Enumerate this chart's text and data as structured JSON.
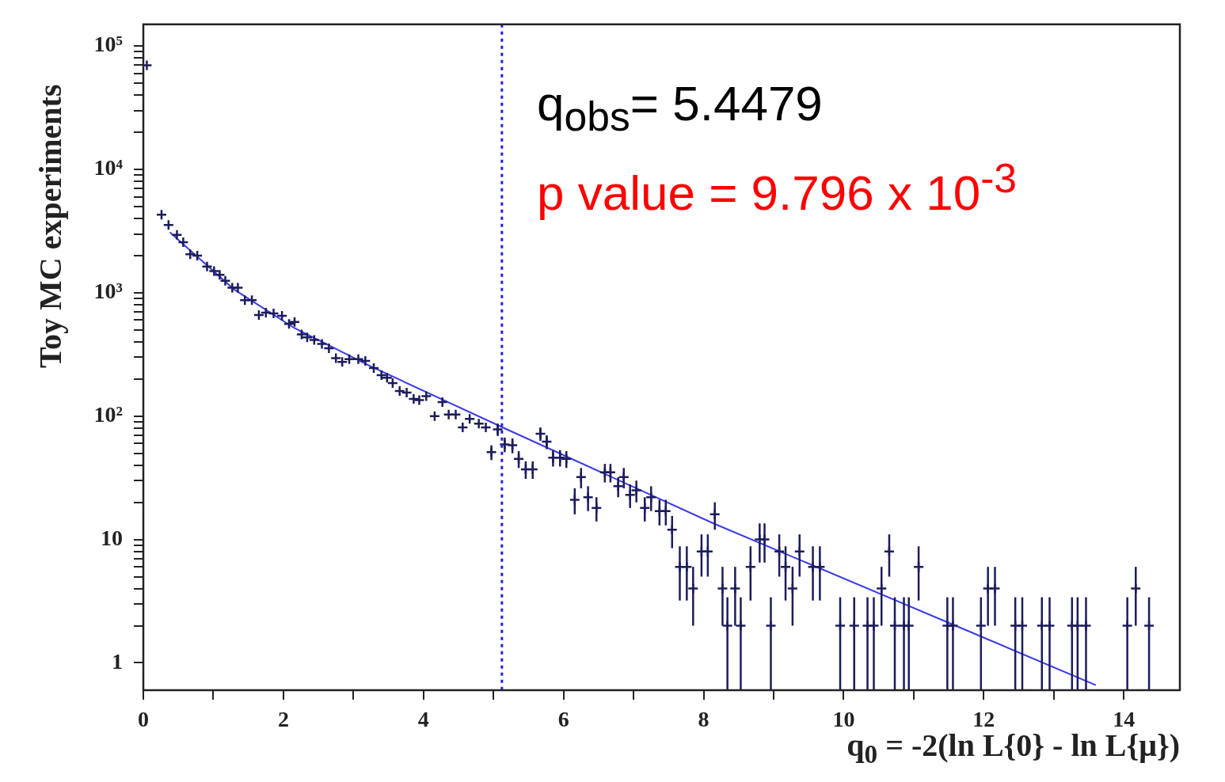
{
  "chart_data": {
    "type": "scatter",
    "xlabel": "q$_{0}$ = -2(ln L{0} - ln L{μ})",
    "ylabel": "Toy MC experiments",
    "annotations": [
      "q$_{obs}$= 5.4479",
      "p value = 9.796 x 10$^{-3}$"
    ],
    "log": "y",
    "grid": false,
    "legend": false,
    "xlim": [
      0,
      14.8
    ],
    "ylim": [
      0.6,
      150000
    ],
    "xticks": [
      0,
      {
        "value": 1,
        "label": null
      },
      2,
      {
        "value": 3,
        "label": null
      },
      4,
      {
        "value": 5,
        "label": null
      },
      6,
      {
        "value": 7,
        "label": null
      },
      8,
      {
        "value": 9,
        "label": null
      },
      10,
      {
        "value": 11,
        "label": null
      },
      12,
      {
        "value": 13,
        "label": null
      },
      14
    ],
    "yticks": [
      1,
      {
        "value": 2,
        "label": null
      },
      {
        "value": 3,
        "label": null
      },
      {
        "value": 4,
        "label": null
      },
      {
        "value": 5,
        "label": null
      },
      {
        "value": 6,
        "label": null
      },
      {
        "value": 7,
        "label": null
      },
      {
        "value": 8,
        "label": null
      },
      {
        "value": 9,
        "label": null
      },
      10,
      {
        "value": 20,
        "label": null
      },
      {
        "value": 30,
        "label": null
      },
      {
        "value": 40,
        "label": null
      },
      {
        "value": 50,
        "label": null
      },
      {
        "value": 60,
        "label": null
      },
      {
        "value": 70,
        "label": null
      },
      {
        "value": 80,
        "label": null
      },
      {
        "value": 90,
        "label": null
      },
      {
        "value": 100,
        "label": "10²"
      },
      {
        "value": 200,
        "label": null
      },
      {
        "value": 300,
        "label": null
      },
      {
        "value": 400,
        "label": null
      },
      {
        "value": 500,
        "label": null
      },
      {
        "value": 600,
        "label": null
      },
      {
        "value": 700,
        "label": null
      },
      {
        "value": 800,
        "label": null
      },
      {
        "value": 900,
        "label": null
      },
      {
        "value": 1000,
        "label": "10³"
      },
      {
        "value": 2000,
        "label": null
      },
      {
        "value": 3000,
        "label": null
      },
      {
        "value": 4000,
        "label": null
      },
      {
        "value": 5000,
        "label": null
      },
      {
        "value": 6000,
        "label": null
      },
      {
        "value": 7000,
        "label": null
      },
      {
        "value": 8000,
        "label": null
      },
      {
        "value": 9000,
        "label": null
      },
      {
        "value": 10000,
        "label": "10⁴"
      },
      {
        "value": 20000,
        "label": null
      },
      {
        "value": 30000,
        "label": null
      },
      {
        "value": 40000,
        "label": null
      },
      {
        "value": 50000,
        "label": null
      },
      {
        "value": 60000,
        "label": null
      },
      {
        "value": 70000,
        "label": null
      },
      {
        "value": 80000,
        "label": null
      },
      {
        "value": 90000,
        "label": null
      },
      {
        "value": 100000,
        "label": "10⁵"
      }
    ],
    "ref_lines": [
      {
        "axis": "x",
        "value": 5.12,
        "color": "#2222dd",
        "line_style": "dotted"
      }
    ],
    "series": [
      {
        "type": "scatter",
        "color": "#1c1c5c",
        "marker": "cross",
        "x": [
          0.05,
          0.26,
          0.36,
          0.48,
          0.57,
          0.67,
          0.77,
          0.91,
          1.01,
          1.09,
          1.17,
          1.27,
          1.35,
          1.45,
          1.55,
          1.65,
          1.75,
          1.86,
          1.98,
          2.08,
          2.16,
          2.26,
          2.34,
          2.44,
          2.55,
          2.65,
          2.75,
          2.84,
          2.94,
          3.07,
          3.17,
          3.29,
          3.4,
          3.48,
          3.56,
          3.66,
          3.76,
          3.86,
          3.94,
          4.04,
          4.16,
          4.27,
          4.36,
          4.46,
          4.56,
          4.66,
          4.79,
          4.89,
          4.97,
          5.06,
          5.16,
          5.27,
          5.36,
          5.46,
          5.56,
          5.67,
          5.76,
          5.85,
          5.95,
          6.04,
          6.16,
          6.25,
          6.35,
          6.47,
          6.59,
          6.67,
          6.78,
          6.86,
          6.95,
          7.04,
          7.16,
          7.25,
          7.37,
          7.46,
          7.55,
          7.66,
          7.76,
          7.85,
          7.97,
          8.06,
          8.16,
          8.27,
          8.34,
          8.45,
          8.53,
          8.67,
          8.8,
          8.87,
          8.96,
          9.08,
          9.17,
          9.27,
          9.37,
          9.56,
          9.66,
          9.95,
          10.15,
          10.34,
          10.43,
          10.54,
          10.65,
          10.73,
          10.86,
          10.93,
          11.07,
          11.48,
          11.56,
          11.96,
          12.06,
          12.16,
          12.45,
          12.55,
          12.83,
          12.94,
          13.26,
          13.34,
          13.46,
          14.05,
          14.17,
          14.36
        ],
        "values": [
          70000,
          4300,
          3550,
          2950,
          2570,
          2050,
          2000,
          1630,
          1500,
          1400,
          1250,
          1100,
          1100,
          870,
          870,
          660,
          690,
          680,
          650,
          560,
          580,
          460,
          435,
          415,
          385,
          355,
          295,
          275,
          290,
          290,
          280,
          245,
          215,
          205,
          185,
          160,
          155,
          138,
          135,
          145,
          100,
          130,
          103,
          103,
          81,
          95,
          87,
          81,
          51,
          78,
          59,
          58,
          45,
          37,
          37,
          72,
          62,
          46,
          46,
          45,
          21,
          32,
          22,
          18,
          35,
          35,
          27,
          32,
          23,
          25,
          18,
          22,
          17,
          17,
          12,
          6,
          6,
          4,
          8,
          8,
          16,
          4,
          2,
          4,
          2,
          6,
          10,
          10,
          2,
          8,
          6,
          4,
          8,
          6,
          6,
          2,
          2,
          2,
          2,
          4,
          8,
          2,
          2,
          2,
          6,
          2,
          2,
          2,
          4,
          4,
          2,
          2,
          2,
          2,
          2,
          2,
          2,
          2,
          4,
          2
        ],
        "errors": [
          null,
          null,
          null,
          null,
          null,
          null,
          null,
          null,
          null,
          null,
          null,
          null,
          null,
          null,
          null,
          null,
          null,
          null,
          null,
          null,
          null,
          null,
          null,
          null,
          null,
          null,
          null,
          null,
          null,
          null,
          null,
          null,
          null,
          null,
          null,
          null,
          null,
          null,
          null,
          null,
          null,
          null,
          null,
          null,
          null,
          null,
          null,
          null,
          7,
          9,
          8,
          8,
          7,
          6,
          6,
          9,
          8,
          7,
          7,
          7,
          5,
          6,
          5,
          4,
          6,
          6,
          5,
          6,
          5,
          5,
          4,
          5,
          4,
          4,
          3.5,
          2.8,
          2.8,
          2,
          3,
          3,
          4,
          2,
          1.4,
          2,
          1.4,
          2.8,
          3.5,
          3.5,
          1.4,
          3,
          2.8,
          2,
          3,
          2.8,
          2.8,
          1.4,
          1.4,
          1.4,
          1.4,
          2,
          3,
          1.4,
          1.4,
          1.4,
          2.8,
          1.4,
          1.4,
          1.4,
          2,
          2,
          1.4,
          1.4,
          1.4,
          1.4,
          1.4,
          1.4,
          1.4,
          1.4,
          2,
          1.4
        ]
      },
      {
        "type": "line",
        "color": "#3a3ae8",
        "marker": "none",
        "x": [
          0.38,
          1.29,
          2.14,
          3.23,
          5.13,
          8.14,
          11.51,
          13.6
        ],
        "values": [
          3090,
          1070,
          525,
          256,
          81,
          13.5,
          2.1,
          0.66
        ]
      }
    ]
  }
}
